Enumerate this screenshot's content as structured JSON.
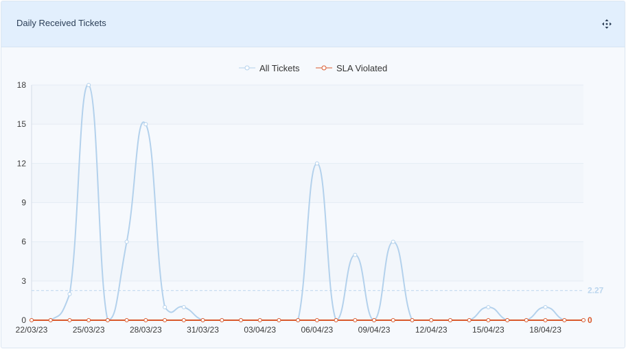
{
  "header": {
    "title": "Daily Received Tickets",
    "expand_icon": "move-arrows-icon"
  },
  "colors": {
    "all_tickets": "#b3d1ec",
    "sla_violated": "#d9582b",
    "average_label": "#bcd6ee",
    "sla_end_label": "#d9582b",
    "band": "#f2f6fb",
    "grid": "#e5ecf4"
  },
  "chart_data": {
    "type": "line",
    "legend": {
      "position": "top-center",
      "items": [
        "All Tickets",
        "SLA Violated"
      ]
    },
    "x": [
      "22/03/23",
      "23/03/23",
      "24/03/23",
      "25/03/23",
      "26/03/23",
      "27/03/23",
      "28/03/23",
      "29/03/23",
      "30/03/23",
      "31/03/23",
      "01/04/23",
      "02/04/23",
      "03/04/23",
      "04/04/23",
      "05/04/23",
      "06/04/23",
      "07/04/23",
      "08/04/23",
      "09/04/23",
      "10/04/23",
      "11/04/23",
      "12/04/23",
      "13/04/23",
      "14/04/23",
      "15/04/23",
      "16/04/23",
      "17/04/23",
      "18/04/23",
      "19/04/23",
      "20/04/23"
    ],
    "x_tick_labels": [
      "22/03/23",
      "25/03/23",
      "28/03/23",
      "31/03/23",
      "03/04/23",
      "06/04/23",
      "09/04/23",
      "12/04/23",
      "15/04/23",
      "18/04/23"
    ],
    "series": [
      {
        "name": "All Tickets",
        "values": [
          0,
          0,
          2,
          18,
          0,
          6,
          15,
          1,
          1,
          0,
          0,
          0,
          0,
          0,
          0,
          12,
          0,
          5,
          0,
          6,
          0,
          0,
          0,
          0,
          1,
          0,
          0,
          1,
          0,
          0
        ]
      },
      {
        "name": "SLA Violated",
        "values": [
          0,
          0,
          0,
          0,
          0,
          0,
          0,
          0,
          0,
          0,
          0,
          0,
          0,
          0,
          0,
          0,
          0,
          0,
          0,
          0,
          0,
          0,
          0,
          0,
          0,
          0,
          0,
          0,
          0,
          0
        ]
      }
    ],
    "y_ticks": [
      0,
      3,
      6,
      9,
      12,
      15,
      18
    ],
    "ylim": [
      0,
      18
    ],
    "grid": true,
    "average_line": {
      "value": 2.27,
      "label": "2.27"
    },
    "sla_end_label": "0"
  }
}
